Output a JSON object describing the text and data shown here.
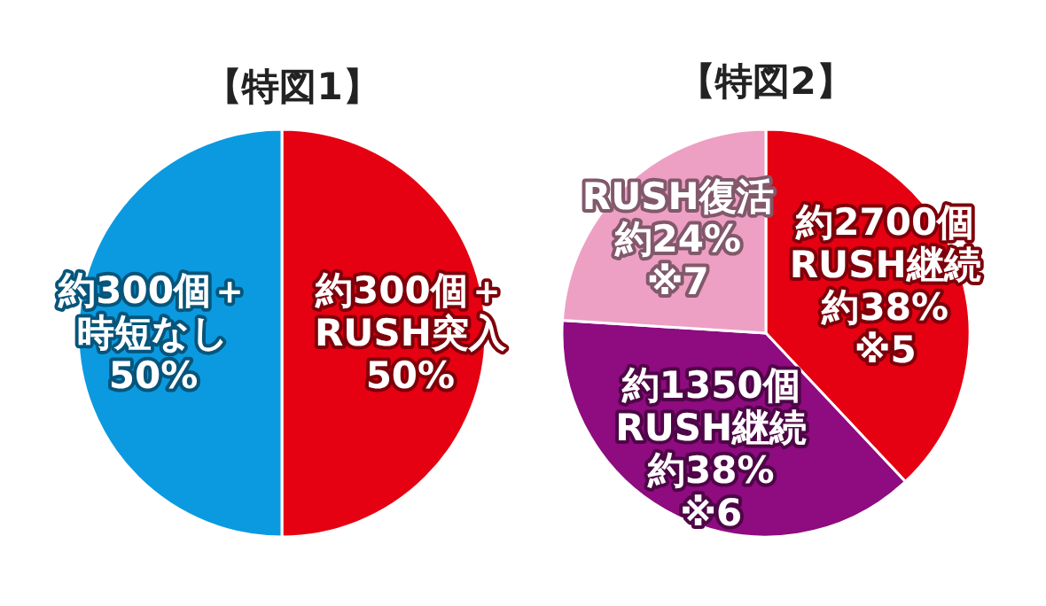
{
  "chart_data": [
    {
      "type": "pie",
      "title": "【特図1】",
      "categories": [
        "約300個＋RUSH突入",
        "約300個＋時短なし"
      ],
      "values": [
        50,
        50
      ],
      "value_labels": [
        "50%",
        "50%"
      ],
      "colors": [
        "#e50012",
        "#0b9ae0"
      ]
    },
    {
      "type": "pie",
      "title": "【特図2】",
      "categories": [
        "約2700個RUSH継続",
        "約1350個RUSH継続",
        "RUSH復活"
      ],
      "values": [
        38,
        38,
        24
      ],
      "value_labels": [
        "約38%※5",
        "約38%※6",
        "約24%※7"
      ],
      "colors": [
        "#e50012",
        "#8e0b80",
        "#eda0c3"
      ]
    }
  ]
}
